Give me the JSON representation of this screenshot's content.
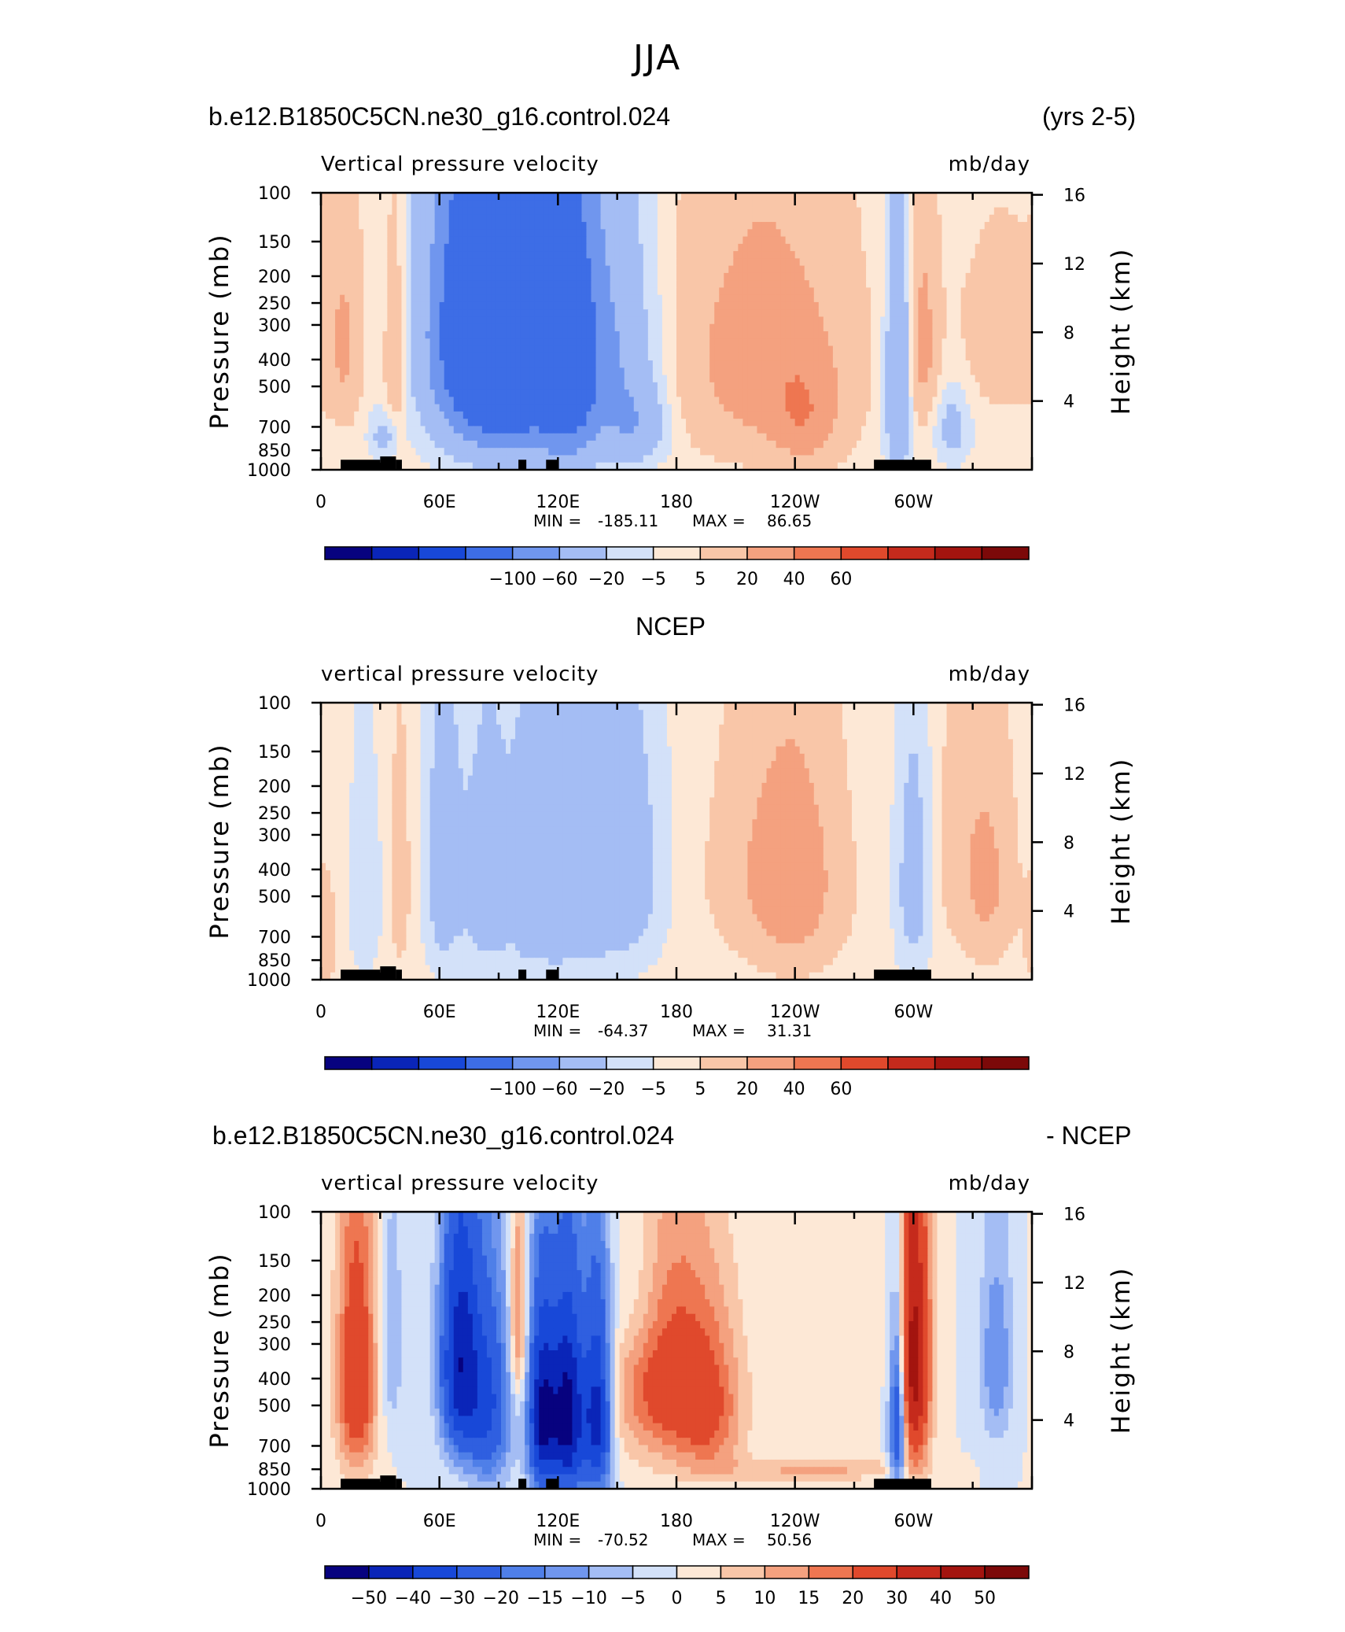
{
  "page_title": "JJA",
  "chart_data": [
    {
      "type": "heatmap",
      "case_label": "b.e12.B1850C5CN.ne30_g16.control.024",
      "case_right": "(yrs 2-5)",
      "title": "Vertical pressure velocity",
      "units": "mb/day",
      "ylabel": "Pressure (mb)",
      "ylabel_right": "Height (km)",
      "x_ticks": [
        "0",
        "60E",
        "120E",
        "180",
        "120W",
        "60W"
      ],
      "y_ticks": [
        "100",
        "150",
        "200",
        "250",
        "300",
        "400",
        "500",
        "700",
        "850",
        "1000"
      ],
      "y_right_ticks": [
        "16",
        "12",
        "8",
        "4"
      ],
      "stats": {
        "min_label": "MIN",
        "min": "-185.11",
        "max_label": "MAX",
        "max": "86.65"
      },
      "colorbar_labels": [
        "-100",
        "-60",
        "-20",
        "-5",
        "5",
        "20",
        "40",
        "60"
      ],
      "colorbar_colors": [
        "#07027f",
        "#0a25b8",
        "#1848d8",
        "#3d6de6",
        "#7096ee",
        "#a4bdf4",
        "#d3e1f9",
        "#fde8d6",
        "#f9c6a8",
        "#f4a17f",
        "#ee7651",
        "#e0492c",
        "#c52a1c",
        "#a3140f",
        "#7c0909"
      ],
      "features": [
        {
          "lon": 80,
          "lev": 300,
          "v": -120,
          "w": 18,
          "h": 260
        },
        {
          "lon": 88,
          "lev": 400,
          "v": -110,
          "w": 18,
          "h": 300
        },
        {
          "lon": 125,
          "lev": 400,
          "v": -120,
          "w": 10,
          "h": 320
        },
        {
          "lon": 107,
          "lev": 400,
          "v": -60,
          "w": 14,
          "h": 320
        },
        {
          "lon": 145,
          "lev": 400,
          "v": -60,
          "w": 15,
          "h": 300
        },
        {
          "lon": 160,
          "lev": 700,
          "v": -40,
          "w": 10,
          "h": 150
        },
        {
          "lon": 223,
          "lev": 400,
          "v": 30,
          "w": 30,
          "h": 300
        },
        {
          "lon": 245,
          "lev": 650,
          "v": 25,
          "w": 12,
          "h": 200
        },
        {
          "lon": 292,
          "lev": 500,
          "v": -60,
          "w": 4,
          "h": 400
        },
        {
          "lon": 305,
          "lev": 350,
          "v": 25,
          "w": 5,
          "h": 200
        },
        {
          "lon": 320,
          "lev": 700,
          "v": -30,
          "w": 6,
          "h": 150
        },
        {
          "lon": 12,
          "lev": 350,
          "v": 20,
          "w": 6,
          "h": 200
        },
        {
          "lon": 38,
          "lev": 400,
          "v": 25,
          "w": 4,
          "h": 250
        },
        {
          "lon": 32,
          "lev": 750,
          "v": -30,
          "w": 5,
          "h": 100
        },
        {
          "lon": 345,
          "lev": 350,
          "v": 10,
          "w": 20,
          "h": 200
        }
      ]
    },
    {
      "type": "heatmap",
      "case_label": "NCEP",
      "title": "vertical pressure velocity",
      "units": "mb/day",
      "ylabel": "Pressure (mb)",
      "ylabel_right": "Height (km)",
      "x_ticks": [
        "0",
        "60E",
        "120E",
        "180",
        "120W",
        "60W"
      ],
      "y_ticks": [
        "100",
        "150",
        "200",
        "250",
        "300",
        "400",
        "500",
        "700",
        "850",
        "1000"
      ],
      "y_right_ticks": [
        "16",
        "12",
        "8",
        "4"
      ],
      "stats": {
        "min_label": "MIN",
        "min": "-64.37",
        "max_label": "MAX",
        "max": "31.31"
      },
      "colorbar_labels": [
        "-100",
        "-60",
        "-20",
        "-5",
        "5",
        "20",
        "40",
        "60"
      ],
      "colorbar_colors": [
        "#07027f",
        "#0a25b8",
        "#1848d8",
        "#3d6de6",
        "#7096ee",
        "#a4bdf4",
        "#d3e1f9",
        "#fde8d6",
        "#f9c6a8",
        "#f4a17f",
        "#ee7651",
        "#e0492c",
        "#c52a1c",
        "#a3140f",
        "#7c0909"
      ],
      "features": [
        {
          "lon": 62,
          "lev": 400,
          "v": -40,
          "w": 6,
          "h": 300
        },
        {
          "lon": 85,
          "lev": 450,
          "v": -40,
          "w": 10,
          "h": 300
        },
        {
          "lon": 105,
          "lev": 450,
          "v": -35,
          "w": 6,
          "h": 300
        },
        {
          "lon": 118,
          "lev": 450,
          "v": -35,
          "w": 6,
          "h": 300
        },
        {
          "lon": 150,
          "lev": 400,
          "v": -50,
          "w": 14,
          "h": 280
        },
        {
          "lon": 130,
          "lev": 500,
          "v": -20,
          "w": 10,
          "h": 300
        },
        {
          "lon": 240,
          "lev": 450,
          "v": 28,
          "w": 16,
          "h": 280
        },
        {
          "lon": 222,
          "lev": 400,
          "v": 12,
          "w": 20,
          "h": 250
        },
        {
          "lon": 300,
          "lev": 450,
          "v": -35,
          "w": 6,
          "h": 300
        },
        {
          "lon": 338,
          "lev": 450,
          "v": 20,
          "w": 9,
          "h": 250
        },
        {
          "lon": 40,
          "lev": 450,
          "v": 20,
          "w": 3,
          "h": 220
        },
        {
          "lon": 22,
          "lev": 500,
          "v": -15,
          "w": 6,
          "h": 300
        },
        {
          "lon": 2,
          "lev": 700,
          "v": 15,
          "w": 4,
          "h": 200
        },
        {
          "lon": 325,
          "lev": 350,
          "v": 10,
          "w": 12,
          "h": 250
        }
      ]
    },
    {
      "type": "heatmap",
      "case_label": "b.e12.B1850C5CN.ne30_g16.control.024",
      "case_right": "- NCEP",
      "title": "vertical pressure velocity",
      "units": "mb/day",
      "ylabel": "Pressure (mb)",
      "ylabel_right": "Height (km)",
      "x_ticks": [
        "0",
        "60E",
        "120E",
        "180",
        "120W",
        "60W"
      ],
      "y_ticks": [
        "100",
        "150",
        "200",
        "250",
        "300",
        "400",
        "500",
        "700",
        "850",
        "1000"
      ],
      "y_right_ticks": [
        "16",
        "12",
        "8",
        "4"
      ],
      "stats": {
        "min_label": "MIN",
        "min": "-70.52",
        "max_label": "MAX",
        "max": "50.56"
      },
      "colorbar_labels": [
        "-50",
        "-40",
        "-30",
        "-20",
        "-15",
        "-10",
        "-5",
        "0",
        "5",
        "10",
        "15",
        "20",
        "30",
        "40",
        "50"
      ],
      "colorbar_colors": [
        "#07027f",
        "#0a25b8",
        "#1848d8",
        "#2f5fe0",
        "#4f7fe8",
        "#7096ee",
        "#a4bdf4",
        "#d3e1f9",
        "#fde8d6",
        "#f9c6a8",
        "#f4a17f",
        "#ee7651",
        "#e0492c",
        "#c52a1c",
        "#a3140f",
        "#7c0909"
      ],
      "features": [
        {
          "lon": 18,
          "lev": 400,
          "v": 30,
          "w": 7,
          "h": 300
        },
        {
          "lon": 70,
          "lev": 350,
          "v": -45,
          "w": 7,
          "h": 250
        },
        {
          "lon": 85,
          "lev": 500,
          "v": -30,
          "w": 8,
          "h": 300
        },
        {
          "lon": 112,
          "lev": 550,
          "v": -50,
          "w": 5,
          "h": 300
        },
        {
          "lon": 125,
          "lev": 550,
          "v": -55,
          "w": 6,
          "h": 320
        },
        {
          "lon": 140,
          "lev": 550,
          "v": -45,
          "w": 5,
          "h": 320
        },
        {
          "lon": 175,
          "lev": 400,
          "v": 25,
          "w": 18,
          "h": 250
        },
        {
          "lon": 198,
          "lev": 550,
          "v": 15,
          "w": 12,
          "h": 250
        },
        {
          "lon": 292,
          "lev": 550,
          "v": -40,
          "w": 3,
          "h": 300
        },
        {
          "lon": 300,
          "lev": 350,
          "v": 45,
          "w": 6,
          "h": 300
        },
        {
          "lon": 342,
          "lev": 350,
          "v": -15,
          "w": 6,
          "h": 200
        },
        {
          "lon": 100,
          "lev": 250,
          "v": 20,
          "w": 3,
          "h": 150
        },
        {
          "lon": 36,
          "lev": 300,
          "v": -10,
          "w": 4,
          "h": 200
        },
        {
          "lon": 250,
          "lev": 850,
          "v": 12,
          "w": 30,
          "h": 60
        },
        {
          "lon": 160,
          "lev": 200,
          "v": -8,
          "w": 10,
          "h": 100
        }
      ]
    }
  ]
}
